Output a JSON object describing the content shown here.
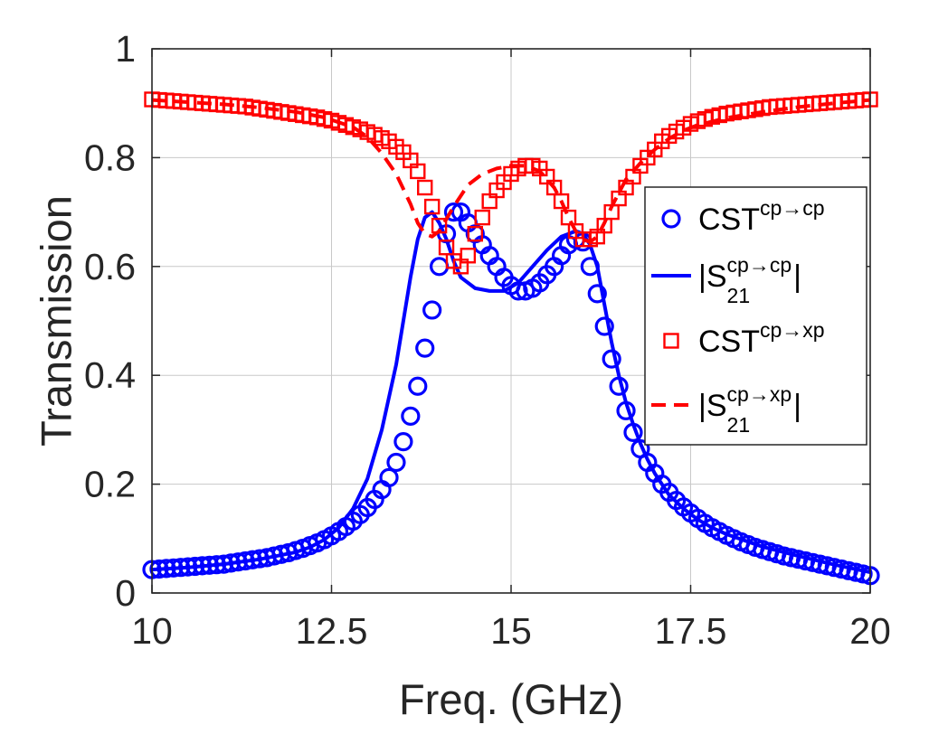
{
  "chart_data": {
    "type": "line",
    "xlabel": "Freq. (GHz)",
    "ylabel": "Transmission",
    "xlim": [
      10,
      20
    ],
    "ylim": [
      0,
      1
    ],
    "xticks": [
      10,
      12.5,
      15,
      17.5,
      20
    ],
    "xtick_labels": [
      "10",
      "12.5",
      "15",
      "17.5",
      "20"
    ],
    "yticks": [
      0,
      0.2,
      0.4,
      0.6,
      0.8,
      1
    ],
    "ytick_labels": [
      "0",
      "0.2",
      "0.4",
      "0.6",
      "0.8",
      "1"
    ],
    "grid": true,
    "legend_position": "right",
    "legend": [
      {
        "base": "CST",
        "sup": "cp→cp",
        "sub": "",
        "prefix": "",
        "suffix": "",
        "style": "circle-markers",
        "color": "#0000ff"
      },
      {
        "base": "S",
        "sup": "cp→cp",
        "sub": "21",
        "prefix": "|",
        "suffix": "|",
        "style": "solid-line",
        "color": "#0000ff"
      },
      {
        "base": "CST",
        "sup": "cp→xp",
        "sub": "",
        "prefix": "",
        "suffix": "",
        "style": "square-markers",
        "color": "#ff0000"
      },
      {
        "base": "S",
        "sup": "cp→xp",
        "sub": "21",
        "prefix": "|",
        "suffix": "|",
        "style": "dashed-line",
        "color": "#ff0000"
      }
    ],
    "series": [
      {
        "name": "CST cp→cp",
        "style": "circle-markers",
        "color": "#0000ff",
        "x": [
          10.0,
          10.1,
          10.2,
          10.3,
          10.4,
          10.5,
          10.6,
          10.7,
          10.8,
          10.9,
          11.0,
          11.1,
          11.2,
          11.3,
          11.4,
          11.5,
          11.6,
          11.7,
          11.8,
          11.9,
          12.0,
          12.1,
          12.2,
          12.3,
          12.4,
          12.5,
          12.6,
          12.7,
          12.8,
          12.9,
          13.0,
          13.1,
          13.2,
          13.3,
          13.4,
          13.5,
          13.6,
          13.7,
          13.8,
          13.9,
          14.0,
          14.1,
          14.2,
          14.3,
          14.4,
          14.5,
          14.6,
          14.7,
          14.8,
          14.9,
          15.0,
          15.1,
          15.2,
          15.3,
          15.4,
          15.5,
          15.6,
          15.7,
          15.8,
          15.9,
          16.0,
          16.1,
          16.2,
          16.3,
          16.4,
          16.5,
          16.6,
          16.7,
          16.8,
          16.9,
          17.0,
          17.1,
          17.2,
          17.3,
          17.4,
          17.5,
          17.6,
          17.7,
          17.8,
          17.9,
          18.0,
          18.1,
          18.2,
          18.3,
          18.4,
          18.5,
          18.6,
          18.7,
          18.8,
          18.9,
          19.0,
          19.1,
          19.2,
          19.3,
          19.4,
          19.5,
          19.6,
          19.7,
          19.8,
          19.9,
          20.0
        ],
        "y": [
          0.043,
          0.044,
          0.045,
          0.046,
          0.047,
          0.048,
          0.049,
          0.05,
          0.051,
          0.052,
          0.053,
          0.055,
          0.057,
          0.059,
          0.061,
          0.063,
          0.065,
          0.068,
          0.071,
          0.074,
          0.078,
          0.082,
          0.087,
          0.092,
          0.098,
          0.105,
          0.113,
          0.122,
          0.132,
          0.144,
          0.157,
          0.172,
          0.19,
          0.212,
          0.24,
          0.278,
          0.325,
          0.38,
          0.45,
          0.52,
          0.6,
          0.66,
          0.7,
          0.7,
          0.68,
          0.66,
          0.64,
          0.62,
          0.6,
          0.58,
          0.565,
          0.555,
          0.555,
          0.56,
          0.57,
          0.585,
          0.6,
          0.62,
          0.64,
          0.65,
          0.645,
          0.6,
          0.55,
          0.49,
          0.43,
          0.38,
          0.335,
          0.295,
          0.265,
          0.24,
          0.22,
          0.2,
          0.185,
          0.17,
          0.158,
          0.147,
          0.137,
          0.128,
          0.12,
          0.113,
          0.106,
          0.1,
          0.094,
          0.089,
          0.084,
          0.08,
          0.076,
          0.072,
          0.068,
          0.065,
          0.062,
          0.059,
          0.056,
          0.053,
          0.05,
          0.047,
          0.044,
          0.041,
          0.038,
          0.035,
          0.032
        ]
      },
      {
        "name": "|S21 cp→cp|",
        "style": "solid-line",
        "color": "#0000ff",
        "x": [
          10.0,
          10.5,
          11.0,
          11.5,
          12.0,
          12.2,
          12.4,
          12.6,
          12.8,
          13.0,
          13.2,
          13.4,
          13.5,
          13.6,
          13.7,
          13.8,
          13.9,
          14.0,
          14.1,
          14.2,
          14.3,
          14.5,
          14.7,
          14.9,
          15.1,
          15.3,
          15.5,
          15.7,
          15.9,
          16.0,
          16.1,
          16.2,
          16.3,
          16.4,
          16.5,
          16.6,
          16.7,
          16.8,
          16.9,
          17.0,
          17.2,
          17.4,
          17.6,
          17.8,
          18.0,
          18.5,
          19.0,
          19.5,
          20.0
        ],
        "y": [
          0.043,
          0.047,
          0.053,
          0.062,
          0.075,
          0.084,
          0.098,
          0.12,
          0.155,
          0.21,
          0.3,
          0.42,
          0.5,
          0.58,
          0.65,
          0.69,
          0.7,
          0.68,
          0.65,
          0.61,
          0.58,
          0.56,
          0.555,
          0.555,
          0.57,
          0.6,
          0.63,
          0.655,
          0.665,
          0.66,
          0.64,
          0.6,
          0.53,
          0.46,
          0.4,
          0.35,
          0.31,
          0.275,
          0.245,
          0.22,
          0.18,
          0.155,
          0.135,
          0.12,
          0.108,
          0.085,
          0.068,
          0.052,
          0.038
        ]
      },
      {
        "name": "CST cp→xp",
        "style": "square-markers",
        "color": "#ff0000",
        "x": [
          10.0,
          10.1,
          10.2,
          10.3,
          10.4,
          10.5,
          10.6,
          10.7,
          10.8,
          10.9,
          11.0,
          11.1,
          11.2,
          11.3,
          11.4,
          11.5,
          11.6,
          11.7,
          11.8,
          11.9,
          12.0,
          12.1,
          12.2,
          12.3,
          12.4,
          12.5,
          12.6,
          12.7,
          12.8,
          12.9,
          13.0,
          13.1,
          13.2,
          13.3,
          13.4,
          13.5,
          13.6,
          13.7,
          13.8,
          13.9,
          14.0,
          14.1,
          14.2,
          14.3,
          14.4,
          14.5,
          14.6,
          14.7,
          14.8,
          14.9,
          15.0,
          15.1,
          15.2,
          15.3,
          15.4,
          15.5,
          15.6,
          15.7,
          15.8,
          15.9,
          16.0,
          16.1,
          16.2,
          16.3,
          16.4,
          16.5,
          16.6,
          16.7,
          16.8,
          16.9,
          17.0,
          17.1,
          17.2,
          17.3,
          17.4,
          17.5,
          17.6,
          17.7,
          17.8,
          17.9,
          18.0,
          18.1,
          18.2,
          18.3,
          18.4,
          18.5,
          18.6,
          18.7,
          18.8,
          18.9,
          19.0,
          19.1,
          19.2,
          19.3,
          19.4,
          19.5,
          19.6,
          19.7,
          19.8,
          19.9,
          20.0
        ],
        "y": [
          0.907,
          0.906,
          0.905,
          0.904,
          0.903,
          0.902,
          0.901,
          0.9,
          0.899,
          0.898,
          0.897,
          0.896,
          0.895,
          0.894,
          0.892,
          0.89,
          0.888,
          0.886,
          0.884,
          0.882,
          0.88,
          0.878,
          0.876,
          0.874,
          0.871,
          0.868,
          0.864,
          0.86,
          0.856,
          0.852,
          0.847,
          0.842,
          0.836,
          0.83,
          0.82,
          0.81,
          0.795,
          0.775,
          0.745,
          0.71,
          0.675,
          0.635,
          0.61,
          0.6,
          0.62,
          0.66,
          0.69,
          0.72,
          0.74,
          0.755,
          0.77,
          0.78,
          0.785,
          0.785,
          0.78,
          0.765,
          0.745,
          0.72,
          0.69,
          0.665,
          0.65,
          0.65,
          0.655,
          0.675,
          0.7,
          0.725,
          0.745,
          0.765,
          0.785,
          0.8,
          0.815,
          0.83,
          0.84,
          0.848,
          0.855,
          0.862,
          0.867,
          0.871,
          0.875,
          0.878,
          0.881,
          0.883,
          0.885,
          0.887,
          0.889,
          0.891,
          0.893,
          0.894,
          0.895,
          0.896,
          0.897,
          0.898,
          0.899,
          0.9,
          0.901,
          0.902,
          0.903,
          0.904,
          0.905,
          0.906,
          0.907
        ]
      },
      {
        "name": "|S21 cp→xp|",
        "style": "dashed-line",
        "color": "#ff0000",
        "x": [
          10.0,
          10.5,
          11.0,
          11.5,
          12.0,
          12.4,
          12.8,
          13.0,
          13.2,
          13.4,
          13.6,
          13.7,
          13.8,
          13.9,
          14.0,
          14.2,
          14.4,
          14.6,
          14.8,
          15.0,
          15.2,
          15.4,
          15.6,
          15.7,
          15.8,
          15.9,
          16.0,
          16.1,
          16.2,
          16.3,
          16.4,
          16.6,
          16.8,
          17.0,
          17.2,
          17.4,
          17.6,
          18.0,
          18.5,
          19.0,
          19.5,
          20.0
        ],
        "y": [
          0.906,
          0.902,
          0.898,
          0.892,
          0.884,
          0.874,
          0.856,
          0.838,
          0.808,
          0.77,
          0.715,
          0.68,
          0.66,
          0.655,
          0.665,
          0.71,
          0.75,
          0.77,
          0.78,
          0.785,
          0.785,
          0.775,
          0.745,
          0.72,
          0.69,
          0.665,
          0.65,
          0.645,
          0.655,
          0.68,
          0.71,
          0.76,
          0.79,
          0.815,
          0.835,
          0.85,
          0.86,
          0.873,
          0.884,
          0.893,
          0.9,
          0.906
        ]
      }
    ]
  }
}
